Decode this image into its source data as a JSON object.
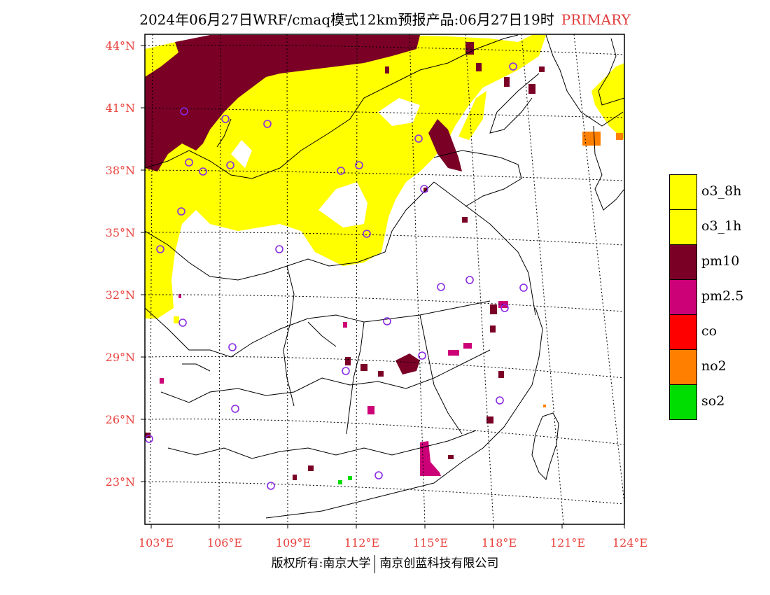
{
  "title": {
    "main": "2024年06月27日WRF/cmaq模式12km预报产品:06月27日19时",
    "tag": "PRIMARY"
  },
  "map": {
    "lat_labels": [
      "44°N",
      "41°N",
      "38°N",
      "35°N",
      "32°N",
      "29°N",
      "26°N",
      "23°N"
    ],
    "lon_labels": [
      "103°E",
      "106°E",
      "109°E",
      "112°E",
      "115°E",
      "118°E",
      "121°E",
      "124°E"
    ],
    "colors": {
      "o3_8h": "#ffff00",
      "o3_1h": "#ffff00",
      "pm10": "#7a0026",
      "pm25": "#cc0077",
      "co": "#ff0000",
      "no2": "#ff8000",
      "so2": "#00dd00",
      "station": "#8a2be2",
      "axis_label": "#e8413c"
    }
  },
  "legend": {
    "items": [
      {
        "label": "o3_8h",
        "color": "#ffff00"
      },
      {
        "label": "o3_1h",
        "color": "#ffff00"
      },
      {
        "label": "pm10",
        "color": "#7a0026"
      },
      {
        "label": "pm2.5",
        "color": "#cc0077"
      },
      {
        "label": "co",
        "color": "#ff0000"
      },
      {
        "label": "no2",
        "color": "#ff8000"
      },
      {
        "label": "so2",
        "color": "#00dd00"
      }
    ]
  },
  "footer": {
    "left": "版权所有:南京大学",
    "right": "南京创蓝科技有限公司"
  }
}
